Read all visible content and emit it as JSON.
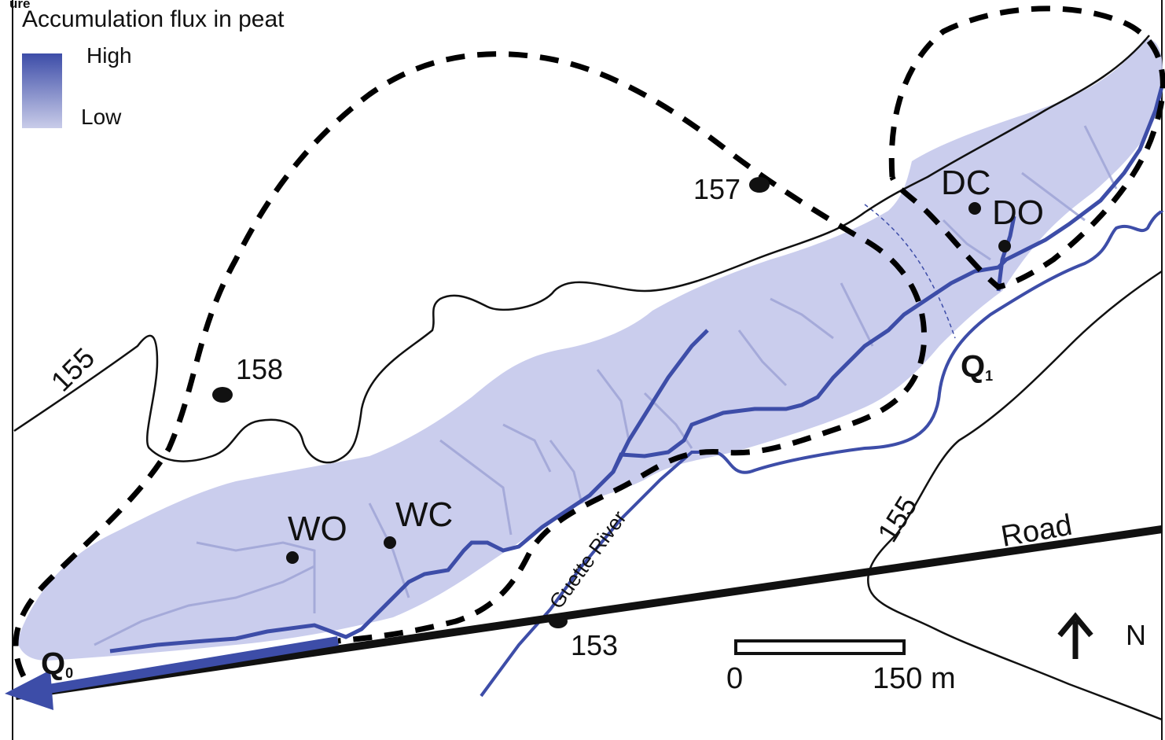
{
  "figure": {
    "corner_label": "ure"
  },
  "legend": {
    "title": "Accumulation flux in peat",
    "high_label": "High",
    "low_label": "Low",
    "high_color": "#3d4da8",
    "low_color": "#c9cce9"
  },
  "elevation_points": [
    {
      "name": "157",
      "label": "157"
    },
    {
      "name": "158",
      "label": "158"
    },
    {
      "name": "153",
      "label": "153"
    }
  ],
  "contour_labels": {
    "west": "155",
    "east": "155"
  },
  "sites": [
    {
      "name": "WO",
      "label": "WO"
    },
    {
      "name": "WC",
      "label": "WC"
    },
    {
      "name": "DC",
      "label": "DC"
    },
    {
      "name": "DO",
      "label": "DO"
    }
  ],
  "outlets": {
    "q0_main": "Q",
    "q0_sub": "0",
    "q1_main": "Q",
    "q1_sub": "1"
  },
  "river_label": "Guette River",
  "road_label": "Road",
  "north_label": "N",
  "scale_bar": {
    "start_label": "0",
    "end_label": "150 m"
  },
  "colors": {
    "peat_fill": "#c6c9ec",
    "flow_line": "#3d4da8",
    "river": "#3d4da8",
    "contour": "#111111",
    "watershed_boundary": "#000000"
  }
}
